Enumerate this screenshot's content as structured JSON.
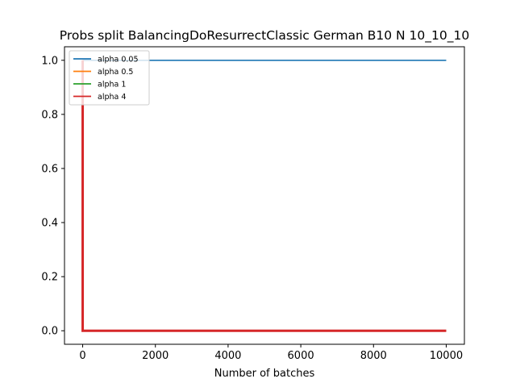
{
  "chart_data": {
    "type": "line",
    "title": "Probs split BalancingDoResurrectClassic German B10 N 10_10_10",
    "xlabel": "Number of batches",
    "ylabel": "",
    "xlim": [
      -500,
      10500
    ],
    "ylim": [
      -0.05,
      1.05
    ],
    "xticks": [
      0,
      2000,
      4000,
      6000,
      8000,
      10000
    ],
    "yticks": [
      0.0,
      0.2,
      0.4,
      0.6,
      0.8,
      1.0
    ],
    "xtick_labels": [
      "0",
      "2000",
      "4000",
      "6000",
      "8000",
      "10000"
    ],
    "ytick_labels": [
      "0.0",
      "0.2",
      "0.4",
      "0.6",
      "0.8",
      "1.0"
    ],
    "legend_position": "top-left",
    "grid": false,
    "series": [
      {
        "name": "alpha 0.05",
        "color": "#1f77b4",
        "x": [
          0,
          10000
        ],
        "y": [
          1.0,
          1.0
        ]
      },
      {
        "name": "alpha 0.5",
        "color": "#ff7f0e",
        "x": [
          0,
          0,
          10000
        ],
        "y": [
          1.0,
          0.0,
          0.0
        ]
      },
      {
        "name": "alpha 1",
        "color": "#2ca02c",
        "x": [
          0,
          0,
          10000
        ],
        "y": [
          1.0,
          0.0,
          0.0
        ]
      },
      {
        "name": "alpha 4",
        "color": "#d62728",
        "x": [
          0,
          0,
          10000
        ],
        "y": [
          1.0,
          0.0,
          0.0
        ]
      }
    ]
  }
}
